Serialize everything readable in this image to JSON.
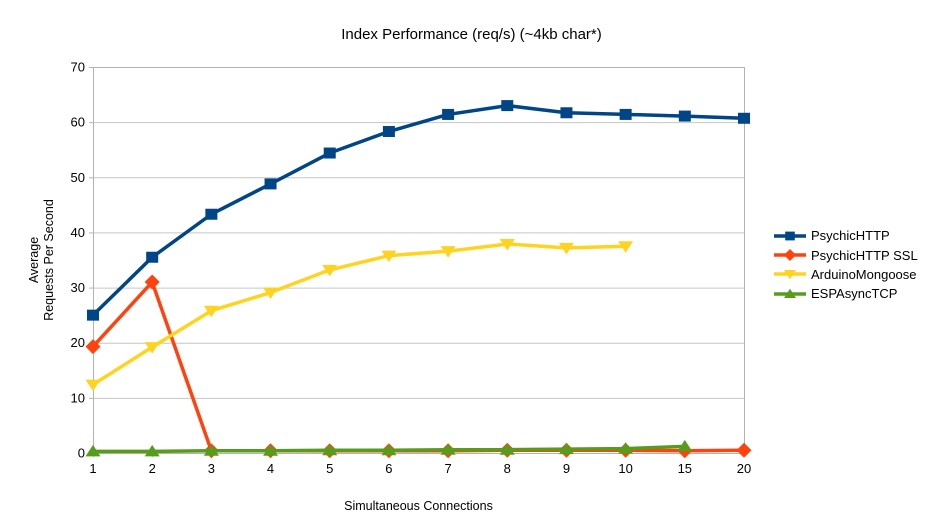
{
  "chart_data": {
    "type": "line",
    "title": "Index Performance (req/s) (~4kb char*)",
    "xlabel": "Simultaneous Connections",
    "ylabel": "Average Requests Per Second",
    "ylabel_lines": [
      "Average",
      "Requests Per Second"
    ],
    "categories": [
      1,
      2,
      3,
      4,
      5,
      6,
      7,
      8,
      9,
      10,
      15,
      20
    ],
    "ylim": [
      0,
      70
    ],
    "yticks": [
      0,
      10,
      20,
      30,
      40,
      50,
      60,
      70
    ],
    "grid": "horizontal",
    "legend_position": "right",
    "axis_color": "#b3b3b3",
    "grid_color": "#c6c6c6",
    "text_color": "#000000",
    "series": [
      {
        "name": "PsychicHTTP",
        "color": "#004586",
        "marker": "square",
        "values": [
          25.0,
          35.5,
          43.3,
          48.8,
          54.4,
          58.3,
          61.4,
          63.0,
          61.7,
          61.4,
          61.1,
          60.7
        ]
      },
      {
        "name": "PsychicHTTP SSL",
        "color": "#ff420e",
        "marker": "diamond",
        "values": [
          19.3,
          31.0,
          0.4,
          0.4,
          0.4,
          0.4,
          0.4,
          0.5,
          0.5,
          0.5,
          0.4,
          0.5
        ]
      },
      {
        "name": "ArduinoMongoose",
        "color": "#ffd320",
        "marker": "triangle-down",
        "values": [
          12.4,
          19.2,
          25.8,
          29.1,
          33.2,
          35.8,
          36.6,
          37.9,
          37.2,
          37.5,
          null,
          null
        ]
      },
      {
        "name": "ESPAsyncTCP",
        "color": "#579d1c",
        "marker": "triangle-up",
        "values": [
          0.3,
          0.3,
          0.4,
          0.4,
          0.5,
          0.5,
          0.6,
          0.6,
          0.7,
          0.8,
          1.2,
          null
        ]
      }
    ]
  }
}
